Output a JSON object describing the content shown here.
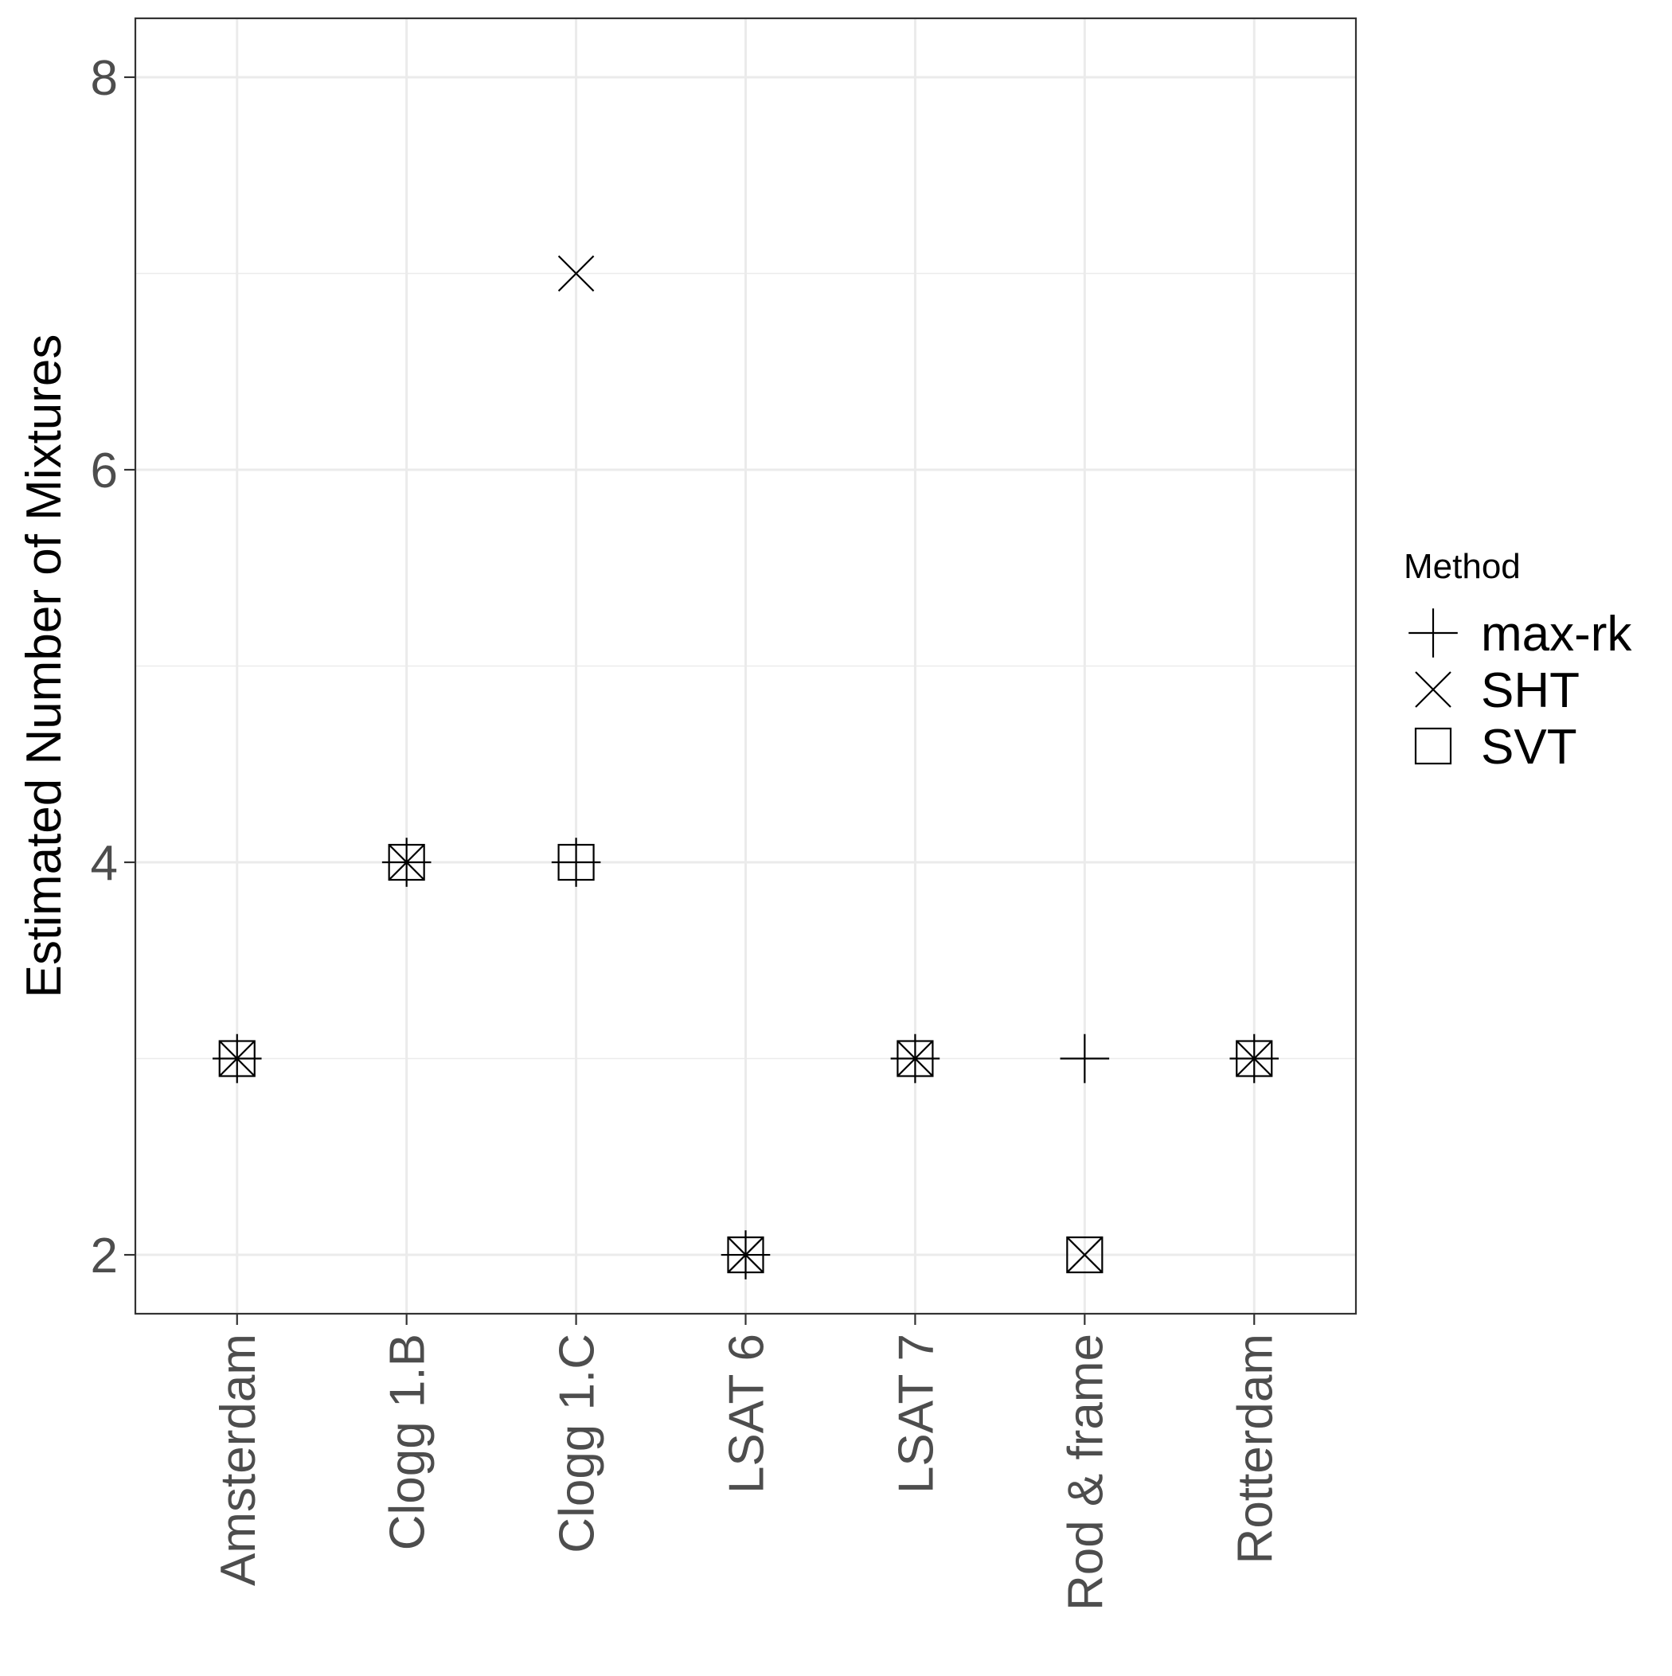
{
  "chart_data": {
    "type": "scatter",
    "title": "",
    "xlabel": "",
    "ylabel": "Estimated Number of Mixtures",
    "categories": [
      "Amsterdam",
      "Clogg 1.B",
      "Clogg 1.C",
      "LSAT 6",
      "LSAT 7",
      "Rod & frame",
      "Rotterdam"
    ],
    "ylim": [
      1.7,
      8.3
    ],
    "y_ticks": [
      2,
      4,
      6,
      8
    ],
    "y_tick_labels": [
      "2",
      "4",
      "6",
      "8"
    ],
    "grid": true,
    "legend": {
      "title": "Method",
      "placement": "right"
    },
    "series": [
      {
        "name": "max-rk",
        "marker": "plus",
        "values": [
          3,
          4,
          4,
          2,
          3,
          3,
          3
        ]
      },
      {
        "name": "SHT",
        "marker": "cross",
        "values": [
          3,
          4,
          7,
          2,
          3,
          2,
          3
        ]
      },
      {
        "name": "SVT",
        "marker": "square",
        "values": [
          3,
          4,
          4,
          2,
          3,
          2,
          3
        ]
      }
    ],
    "colors": {
      "marker": "#000000",
      "grid": "#ebebeb",
      "panel_border": "#333333",
      "tick_text": "#4d4d4d"
    }
  }
}
